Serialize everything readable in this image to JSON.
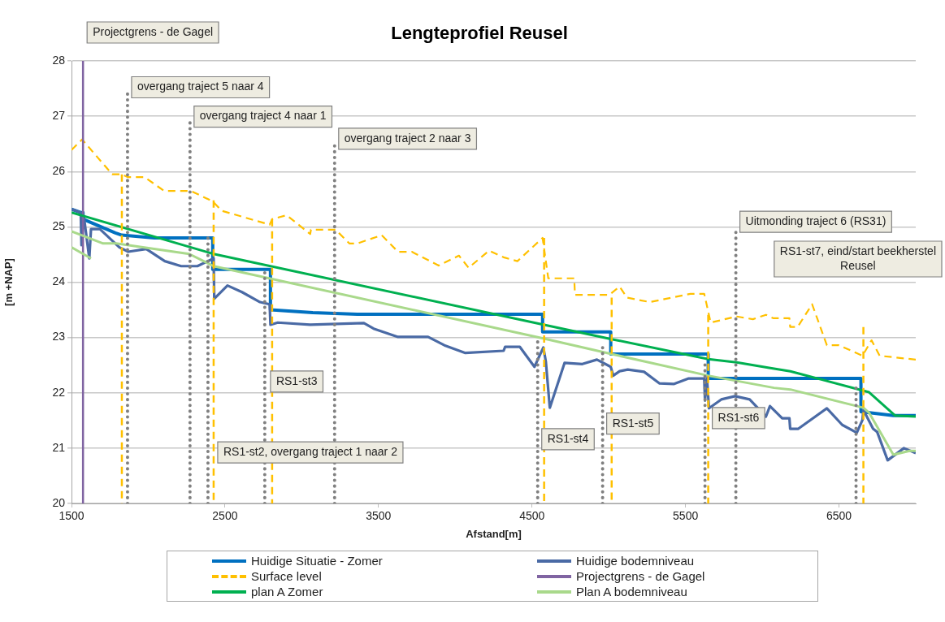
{
  "chart_data": {
    "type": "line",
    "title": "Lengteprofiel Reusel",
    "xlabel": "Afstand[m]",
    "ylabel": "[m +NAP]",
    "xlim": [
      1500,
      7000
    ],
    "xticks": [
      1500,
      2500,
      3500,
      4500,
      5500,
      6500
    ],
    "ylim": [
      20,
      28
    ],
    "yticks": [
      20,
      21,
      22,
      23,
      24,
      25,
      26,
      27,
      28
    ],
    "grid": "y",
    "legend": "bottom",
    "marker": "none",
    "series": [
      {
        "name": "Huidige Situatie - Zomer",
        "color": "#0070c0",
        "line_style": "solid",
        "x": [
          1500,
          1560,
          1575,
          1575,
          1786,
          1828,
          2040,
          2420,
          2420,
          2796,
          2796,
          3071,
          3362,
          4569,
          4569,
          5013,
          5013,
          5648,
          5648,
          6643,
          6643,
          6854,
          7000
        ],
        "values": [
          25.32,
          25.26,
          25.26,
          25.14,
          24.89,
          24.85,
          24.8,
          24.8,
          24.23,
          24.23,
          23.5,
          23.45,
          23.42,
          23.42,
          23.1,
          23.1,
          22.7,
          22.7,
          22.26,
          22.26,
          21.66,
          21.59,
          21.59
        ]
      },
      {
        "name": "Huidige bodemniveau",
        "color": "#4a6aa5",
        "line_style": "solid",
        "x": [
          1500,
          1560,
          1565,
          1580,
          1616,
          1627,
          1685,
          1812,
          1870,
          1987,
          2108,
          2214,
          2320,
          2426,
          2430,
          2516,
          2611,
          2728,
          2791,
          2796,
          2844,
          3055,
          3405,
          3468,
          3627,
          3823,
          3929,
          4066,
          4315,
          4325,
          4421,
          4516,
          4574,
          4590,
          4616,
          4712,
          4828,
          4923,
          5013,
          5029,
          5071,
          5124,
          5230,
          5331,
          5426,
          5521,
          5622,
          5627,
          5640,
          5653,
          5733,
          5823,
          5918,
          6024,
          6050,
          6130,
          6177,
          6182,
          6235,
          6421,
          6521,
          6616,
          6653,
          6659,
          6722,
          6749,
          6817,
          6923,
          7000
        ],
        "values": [
          25.32,
          25.26,
          24.67,
          25.2,
          24.43,
          24.96,
          24.96,
          24.63,
          24.55,
          24.6,
          24.38,
          24.29,
          24.29,
          24.43,
          23.7,
          23.94,
          23.82,
          23.64,
          23.6,
          23.23,
          23.27,
          23.23,
          23.26,
          23.16,
          23.01,
          23.01,
          22.86,
          22.72,
          22.76,
          22.83,
          22.83,
          22.47,
          22.82,
          22.57,
          21.73,
          22.54,
          22.52,
          22.6,
          22.47,
          22.31,
          22.39,
          22.42,
          22.38,
          22.17,
          22.16,
          22.26,
          22.26,
          21.86,
          22.26,
          21.72,
          21.88,
          21.94,
          21.88,
          21.57,
          21.76,
          21.54,
          21.54,
          21.35,
          21.35,
          21.72,
          21.42,
          21.28,
          21.51,
          21.69,
          21.35,
          21.29,
          20.78,
          21.0,
          20.91
        ]
      },
      {
        "name": "Surface level",
        "color": "#ffc000",
        "line_style": "dashed",
        "x": [
          1500,
          1569,
          1765,
          1828,
          1865,
          1976,
          2103,
          2278,
          2420,
          2479,
          2791,
          2807,
          2902,
          3055,
          3060,
          3220,
          3310,
          3362,
          3521,
          3627,
          3717,
          3892,
          4024,
          4087,
          4220,
          4315,
          4405,
          4569,
          4606,
          4775,
          4780,
          5003,
          5071,
          5119,
          5267,
          5532,
          5622,
          5664,
          5833,
          5939,
          6024,
          6071,
          6177,
          6182,
          6230,
          6325,
          6421,
          6500,
          6653,
          6712,
          6765,
          7000
        ],
        "values": [
          26.39,
          26.58,
          25.95,
          25.95,
          25.9,
          25.9,
          25.65,
          25.65,
          25.46,
          25.29,
          25.04,
          25.14,
          25.21,
          24.87,
          24.95,
          24.95,
          24.7,
          24.7,
          24.85,
          24.55,
          24.55,
          24.3,
          24.48,
          24.26,
          24.57,
          24.45,
          24.38,
          24.8,
          24.07,
          24.07,
          23.77,
          23.77,
          23.92,
          23.72,
          23.64,
          23.79,
          23.79,
          23.27,
          23.38,
          23.33,
          23.41,
          23.35,
          23.35,
          23.19,
          23.19,
          23.6,
          22.86,
          22.86,
          22.67,
          22.95,
          22.67,
          22.6
        ]
      },
      {
        "name": "Projectgrens - de Gagel",
        "color": "#8064a2",
        "line_style": "solid",
        "x": [
          1575,
          1575
        ],
        "values": [
          20,
          28
        ]
      },
      {
        "name": "plan A Zomer",
        "color": "#00b050",
        "line_style": "solid",
        "x": [
          1500,
          2426,
          4579,
          5019,
          5648,
          5833,
          6045,
          6183,
          6696,
          6865,
          7000
        ],
        "values": [
          25.26,
          24.51,
          23.23,
          22.97,
          22.61,
          22.55,
          22.45,
          22.39,
          22.01,
          21.59,
          21.57
        ]
      },
      {
        "name": "Plan A bodemniveau",
        "color": "#a9d98b",
        "line_style": "solid",
        "x": [
          1500,
          1706,
          1791,
          2267,
          2426,
          4579,
          5019,
          5648,
          6077,
          6183,
          6659,
          6696,
          6854,
          6960,
          7000
        ],
        "values": [
          24.92,
          24.7,
          24.7,
          24.51,
          24.29,
          22.98,
          22.7,
          22.31,
          22.09,
          22.06,
          21.73,
          21.64,
          20.88,
          20.95,
          20.95
        ]
      },
      {
        "color": "#ffc000",
        "line_style": "dashed",
        "x": [
          1828,
          1828
        ],
        "values": [
          25.95,
          20
        ]
      },
      {
        "color": "#ffc000",
        "line_style": "dashed",
        "x": [
          2426,
          2426
        ],
        "values": [
          25.48,
          20
        ]
      },
      {
        "color": "#ffc000",
        "line_style": "dashed",
        "x": [
          2807,
          2807
        ],
        "values": [
          25.14,
          20
        ]
      },
      {
        "color": "#ffc000",
        "line_style": "dashed",
        "x": [
          4579,
          4579
        ],
        "values": [
          24.8,
          20
        ]
      },
      {
        "color": "#ffc000",
        "line_style": "dashed",
        "x": [
          5019,
          5019
        ],
        "values": [
          23.72,
          20
        ]
      },
      {
        "color": "#ffc000",
        "line_style": "dashed",
        "x": [
          5648,
          5648
        ],
        "values": [
          23.41,
          20
        ]
      },
      {
        "color": "#ffc000",
        "line_style": "dashed",
        "x": [
          6659,
          6659
        ],
        "values": [
          23.19,
          20
        ]
      },
      {
        "color": "#808080",
        "line_style": "dotted",
        "x": [
          1865,
          1865
        ],
        "values": [
          20,
          27.42
        ]
      },
      {
        "color": "#808080",
        "line_style": "dotted",
        "x": [
          2272,
          2272
        ],
        "values": [
          20,
          26.89
        ]
      },
      {
        "color": "#808080",
        "line_style": "dotted",
        "x": [
          2389,
          2389
        ],
        "values": [
          20,
          24.85
        ]
      },
      {
        "color": "#808080",
        "line_style": "dotted",
        "x": [
          2759,
          2759
        ],
        "values": [
          20,
          24.21
        ]
      },
      {
        "color": "#808080",
        "line_style": "dotted",
        "x": [
          3214,
          3214
        ],
        "values": [
          20,
          26.49
        ]
      },
      {
        "color": "#808080",
        "line_style": "dotted",
        "x": [
          4537,
          4537
        ],
        "values": [
          20,
          22.98
        ]
      },
      {
        "color": "#808080",
        "line_style": "dotted",
        "x": [
          4960,
          4960
        ],
        "values": [
          20,
          22.86
        ]
      },
      {
        "color": "#808080",
        "line_style": "dotted",
        "x": [
          5627,
          5627
        ],
        "values": [
          20,
          22.6
        ]
      },
      {
        "color": "#808080",
        "line_style": "dotted",
        "x": [
          5828,
          5828
        ],
        "values": [
          20,
          24.99
        ]
      },
      {
        "color": "#808080",
        "line_style": "dotted",
        "x": [
          6611,
          6611
        ],
        "values": [
          20,
          22.16
        ]
      },
      {
        "color": "#a9d98b",
        "line_style": "solid",
        "x": [
          1500,
          1627
        ],
        "values": [
          24.63,
          24.43
        ]
      }
    ],
    "annotations": [
      {
        "text": "Projectgrens - de Gagel",
        "x": 1575,
        "y": 28
      },
      {
        "text": "overgang traject 5 naar 4",
        "x": 1865,
        "y": 27.42
      },
      {
        "text": "overgang traject 4 naar 1",
        "x": 2272,
        "y": 26.89
      },
      {
        "text": "overgang traject 2 naar 3",
        "x": 3214,
        "y": 26.49
      },
      {
        "text": "Uitmonding traject 6 (RS31)",
        "x": 5828,
        "y": 24.99
      },
      {
        "text": "RS1-st3",
        "x": 2770,
        "y": 22.1
      },
      {
        "text": "RS1-st2, overgang traject 1 naar 2",
        "x": 2426,
        "y": 20.82
      },
      {
        "text": "RS1-st4",
        "x": 4537,
        "y": 21.06
      },
      {
        "text": "RS1-st5",
        "x": 4960,
        "y": 21.34
      },
      {
        "text": "RS1-st6",
        "x": 5648,
        "y": 21.44
      },
      "RS1-st7, eind/start beekherstel Reusel"
    ]
  }
}
